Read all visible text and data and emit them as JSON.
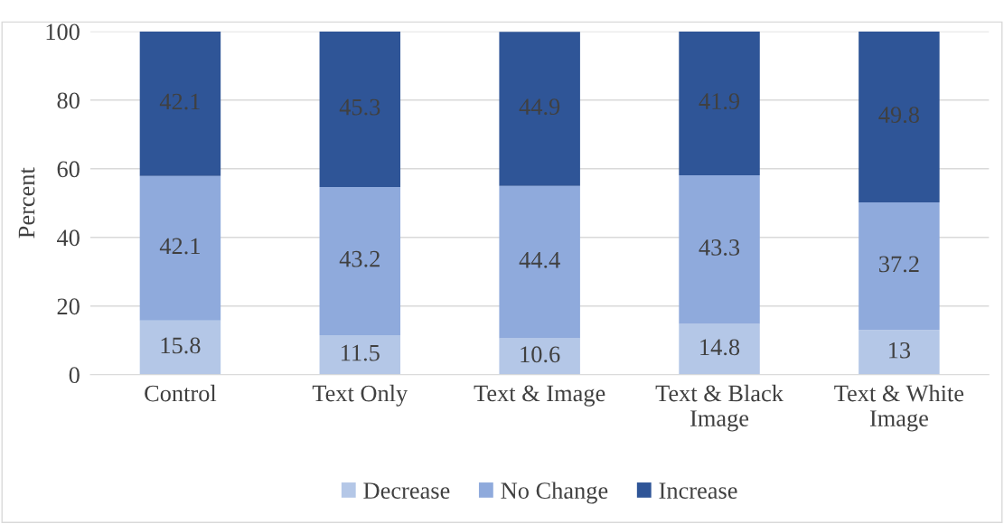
{
  "chart_data": {
    "type": "bar",
    "stacked": true,
    "ylabel": "Percent",
    "categories": [
      "Control",
      "Text Only",
      "Text & Image",
      "Text & Black\nImage",
      "Text & White\nImage"
    ],
    "series": [
      {
        "name": "Decrease",
        "color": "#b4c7e7",
        "values": [
          15.8,
          11.5,
          10.6,
          14.8,
          13
        ]
      },
      {
        "name": "No Change",
        "color": "#8faadc",
        "values": [
          42.1,
          43.2,
          44.4,
          43.3,
          37.2
        ]
      },
      {
        "name": "Increase",
        "color": "#2f5597",
        "values": [
          42.1,
          45.3,
          44.9,
          41.9,
          49.8
        ]
      }
    ],
    "ylim": [
      0,
      100
    ],
    "yticks": [
      0,
      20,
      40,
      60,
      80,
      100
    ],
    "grid": "y",
    "legend": "bottom",
    "data_labels": true
  }
}
